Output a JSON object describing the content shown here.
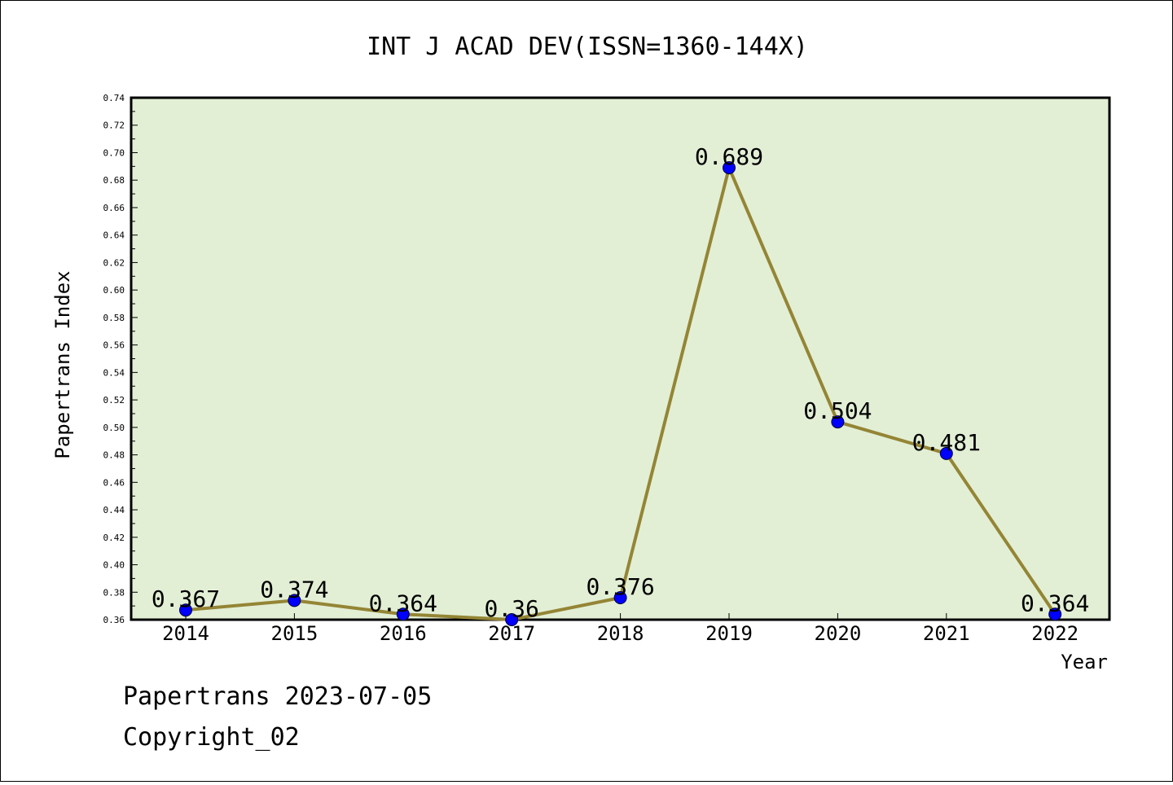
{
  "chart_data": {
    "type": "line",
    "title": "INT J ACAD DEV(ISSN=1360-144X)",
    "xlabel": "Year",
    "ylabel": "Papertrans Index",
    "categories": [
      "2014",
      "2015",
      "2016",
      "2017",
      "2018",
      "2019",
      "2020",
      "2021",
      "2022"
    ],
    "series": [
      {
        "name": "Papertrans Index",
        "values": [
          0.367,
          0.374,
          0.364,
          0.36,
          0.376,
          0.689,
          0.504,
          0.481,
          0.364
        ],
        "labels": [
          "0.367",
          "0.374",
          "0.364",
          "0.36",
          "0.376",
          "0.689",
          "0.504",
          "0.481",
          "0.364"
        ]
      }
    ],
    "ylim": [
      0.36,
      0.74
    ],
    "yticks": [
      "0.36",
      "0.38",
      "0.40",
      "0.42",
      "0.44",
      "0.46",
      "0.48",
      "0.50",
      "0.52",
      "0.54",
      "0.56",
      "0.58",
      "0.60",
      "0.62",
      "0.64",
      "0.66",
      "0.68",
      "0.70",
      "0.72",
      "0.74"
    ],
    "grid": false,
    "colors": {
      "plot_background": "#e2efd5",
      "line": "#948535",
      "marker": "#0000ff"
    }
  },
  "footer": {
    "date_line": "Papertrans 2023-07-05",
    "copyright": "Copyright_02"
  }
}
